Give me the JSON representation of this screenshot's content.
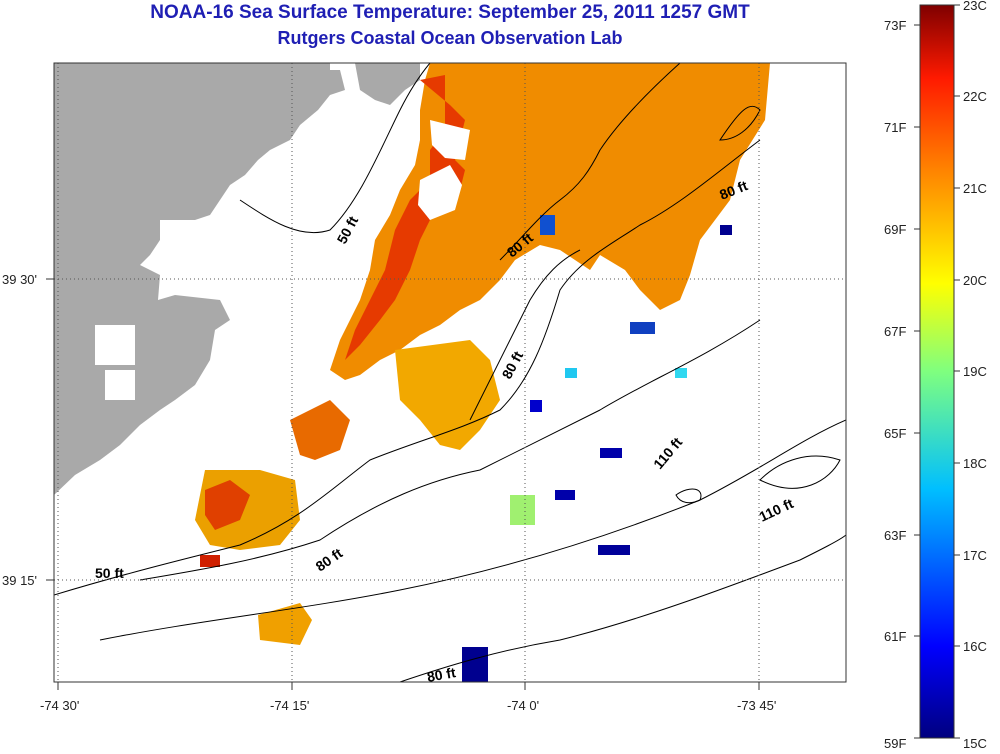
{
  "title": "NOAA-16 Sea Surface Temperature:  September 25, 2011 1257 GMT",
  "subtitle": "Rutgers Coastal Ocean Observation Lab",
  "axes": {
    "x_ticks": [
      "-74 30'",
      "-74 15'",
      "-74 0'",
      "-73 45'"
    ],
    "y_ticks": [
      "39 30'",
      "39 15'"
    ]
  },
  "contour_labels": [
    "50 ft",
    "50 ft",
    "80 ft",
    "80 ft",
    "80 ft",
    "80 ft",
    "80 ft",
    "110 ft",
    "110 ft"
  ],
  "colorbar": {
    "celsius": [
      "23C",
      "22C",
      "21C",
      "20C",
      "19C",
      "18C",
      "17C",
      "16C",
      "15C"
    ],
    "fahrenheit": [
      "73F",
      "71F",
      "69F",
      "67F",
      "65F",
      "63F",
      "61F",
      "59F"
    ]
  },
  "colors": {
    "title": "#1f1fb4",
    "land": "#a9a9a9"
  }
}
